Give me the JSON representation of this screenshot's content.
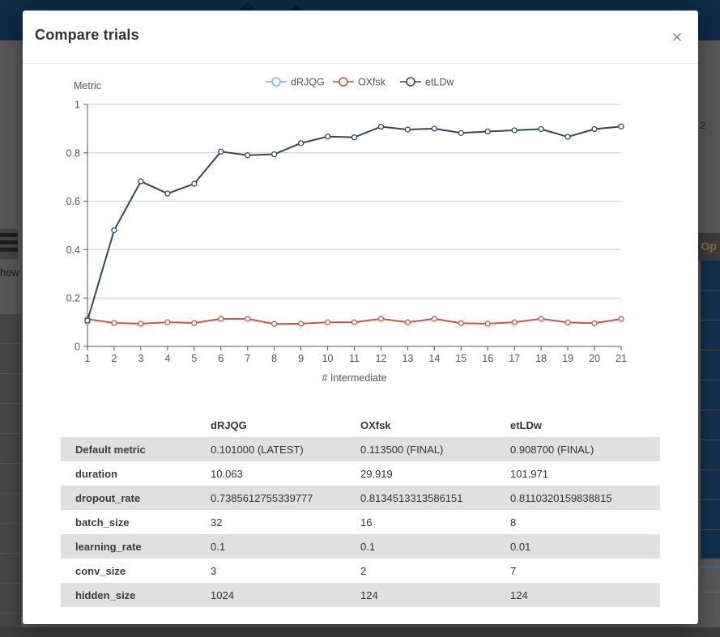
{
  "modal": {
    "title": "Compare trials",
    "close_glyph": "✕"
  },
  "chart_data": {
    "type": "line",
    "title": "Metric",
    "xlabel": "# Intermediate",
    "x": [
      1,
      2,
      3,
      4,
      5,
      6,
      7,
      8,
      9,
      10,
      11,
      12,
      13,
      14,
      15,
      16,
      17,
      18,
      19,
      20,
      21
    ],
    "ylim": [
      0,
      1
    ],
    "yticks": [
      0,
      0.2,
      0.4,
      0.6,
      0.8,
      1
    ],
    "grid": true,
    "legend_position": "top",
    "series": [
      {
        "name": "dRJQG",
        "color": "#7fb6c3",
        "values": [
          0.101
        ]
      },
      {
        "name": "OXfsk",
        "color": "#c8544c",
        "values": [
          0.113,
          0.097,
          0.094,
          0.1,
          0.097,
          0.114,
          0.114,
          0.093,
          0.094,
          0.1,
          0.1,
          0.114,
          0.1,
          0.114,
          0.096,
          0.094,
          0.1,
          0.114,
          0.099,
          0.096,
          0.1135
        ]
      },
      {
        "name": "etLDw",
        "color": "#33485e",
        "values": [
          0.107,
          0.48,
          0.682,
          0.632,
          0.672,
          0.805,
          0.79,
          0.794,
          0.84,
          0.867,
          0.864,
          0.908,
          0.896,
          0.9,
          0.882,
          0.888,
          0.893,
          0.898,
          0.866,
          0.898,
          0.9087
        ]
      }
    ]
  },
  "table": {
    "headers": [
      "",
      "dRJQG",
      "OXfsk",
      "etLDw"
    ],
    "rows": [
      {
        "label": "Default metric",
        "values": [
          "0.101000 (LATEST)",
          "0.113500 (FINAL)",
          "0.908700 (FINAL)"
        ]
      },
      {
        "label": "duration",
        "values": [
          "10.063",
          "29.919",
          "101.971"
        ]
      },
      {
        "label": "dropout_rate",
        "values": [
          "0.7385612755339777",
          "0.8134513313586151",
          "0.8110320159838815"
        ]
      },
      {
        "label": "batch_size",
        "values": [
          "32",
          "16",
          "8"
        ]
      },
      {
        "label": "learning_rate",
        "values": [
          "0.1",
          "0.1",
          "0.01"
        ]
      },
      {
        "label": "conv_size",
        "values": [
          "3",
          "2",
          "7"
        ]
      },
      {
        "label": "hidden_size",
        "values": [
          "1024",
          "124",
          "124"
        ]
      }
    ]
  },
  "background": {
    "left_partial_text": "how",
    "right_partial_text": "Op",
    "right_number": "2"
  },
  "colors": {
    "header_navy": "#0d2b44",
    "overlay_grey": "#5b5b5b",
    "zebra_row": "#e0e0e0",
    "axis": "#555555",
    "gridline": "#cccccc"
  }
}
